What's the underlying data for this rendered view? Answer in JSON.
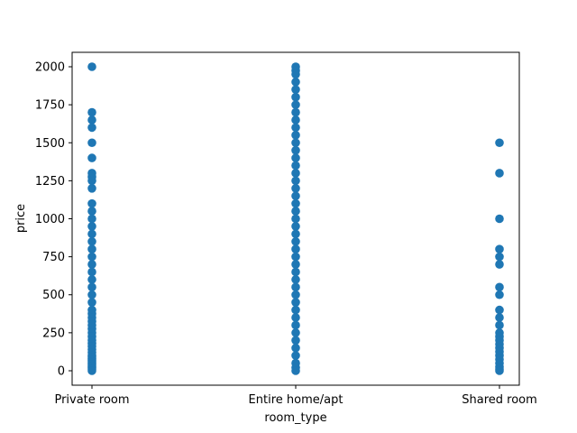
{
  "chart_data": {
    "type": "scatter",
    "title": "",
    "xlabel": "room_type",
    "ylabel": "price",
    "categories": [
      "Private room",
      "Entire home/apt",
      "Shared room"
    ],
    "ylim": [
      -95,
      2095
    ],
    "yticks": [
      0,
      250,
      500,
      750,
      1000,
      1250,
      1500,
      1750,
      2000
    ],
    "grid": false,
    "legend": "none",
    "color": "#1f77b4",
    "points": {
      "Private room": [
        2000,
        1700,
        1650,
        1600,
        1500,
        1400,
        1300,
        1275,
        1250,
        1200,
        1100,
        1050,
        1000,
        950,
        900,
        850,
        800,
        750,
        700,
        650,
        600,
        550,
        500,
        450,
        400,
        375,
        350,
        325,
        300,
        275,
        250,
        225,
        200,
        180,
        160,
        140,
        120,
        100,
        90,
        80,
        70,
        60,
        50,
        40,
        30,
        20,
        10,
        0
      ],
      "Entire home/apt": [
        2000,
        1975,
        1950,
        1900,
        1850,
        1800,
        1750,
        1700,
        1650,
        1600,
        1550,
        1500,
        1450,
        1400,
        1350,
        1300,
        1250,
        1200,
        1150,
        1100,
        1050,
        1000,
        950,
        900,
        850,
        800,
        750,
        700,
        650,
        600,
        550,
        500,
        450,
        400,
        350,
        300,
        250,
        200,
        150,
        100,
        50,
        20,
        0
      ],
      "Shared room": [
        1500,
        1300,
        1000,
        800,
        750,
        700,
        550,
        500,
        400,
        350,
        300,
        250,
        225,
        200,
        175,
        150,
        125,
        100,
        75,
        50,
        25,
        10,
        0
      ]
    }
  }
}
